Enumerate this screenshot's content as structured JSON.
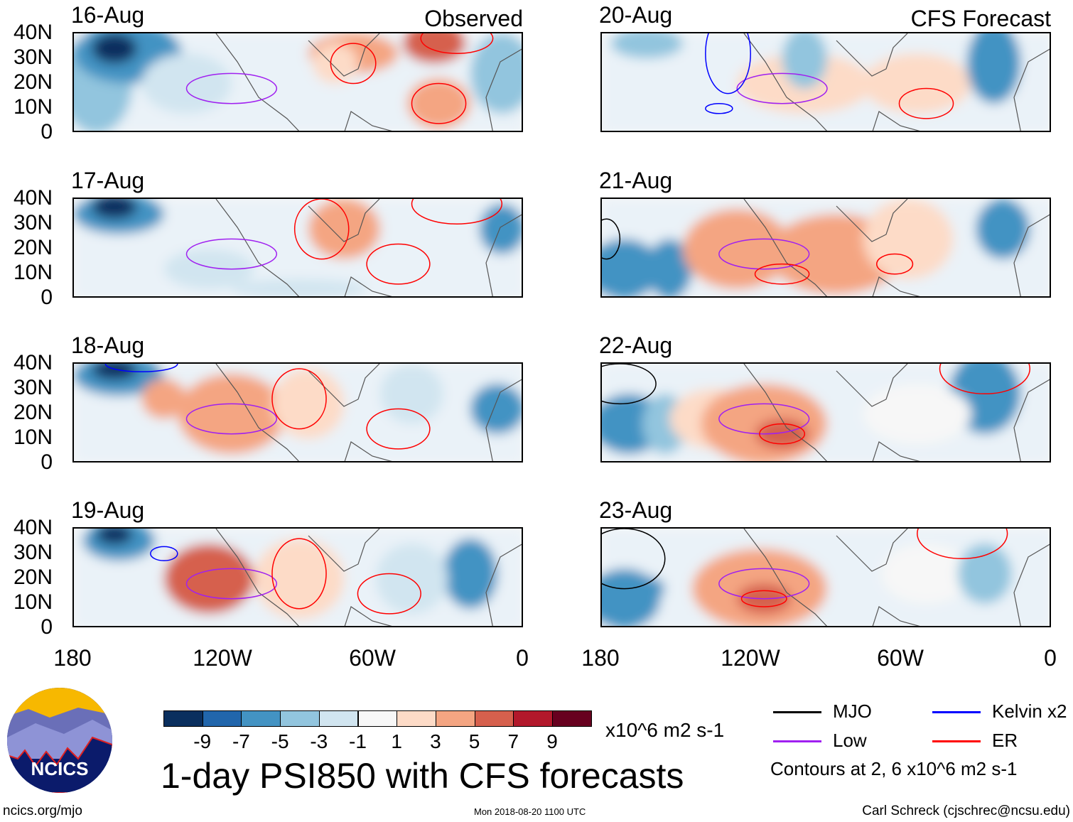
{
  "panels": [
    {
      "date": "16-Aug",
      "tag": "Observed"
    },
    {
      "date": "17-Aug"
    },
    {
      "date": "18-Aug"
    },
    {
      "date": "19-Aug"
    },
    {
      "date": "20-Aug",
      "tag": "CFS Forecast"
    },
    {
      "date": "21-Aug"
    },
    {
      "date": "22-Aug"
    },
    {
      "date": "23-Aug"
    }
  ],
  "lat_labels": [
    "40N",
    "30N",
    "20N",
    "10N",
    "0"
  ],
  "lon_labels": [
    "180",
    "120W",
    "60W",
    "0"
  ],
  "colorbar": {
    "colors": [
      "#0a2f5e",
      "#2166ac",
      "#4393c3",
      "#92c5de",
      "#d1e5f0",
      "#f7f7f7",
      "#fddbc7",
      "#f4a582",
      "#d6604d",
      "#b2182b",
      "#67001f"
    ],
    "labels": [
      "-9",
      "-7",
      "-5",
      "-3",
      "-1",
      "1",
      "3",
      "5",
      "7",
      "9"
    ],
    "units": "x10^6 m2 s-1"
  },
  "title": "1-day PSI850 with CFS forecasts",
  "legend": {
    "items": [
      {
        "label": "MJO",
        "color": "#000000"
      },
      {
        "label": "Kelvin x2",
        "color": "#0000ff"
      },
      {
        "label": "Low",
        "color": "#a020f0"
      },
      {
        "label": "ER",
        "color": "#ff0000"
      }
    ],
    "note": "Contours at 2, 6 x10^6 m2 s-1"
  },
  "logo": {
    "text": "NCICS"
  },
  "footer": {
    "url": "ncics.org/mjo",
    "timestamp": "Mon 2018-08-20 1100 UTC",
    "author": "Carl Schreck (cjschrec@ncsu.edu)"
  }
}
